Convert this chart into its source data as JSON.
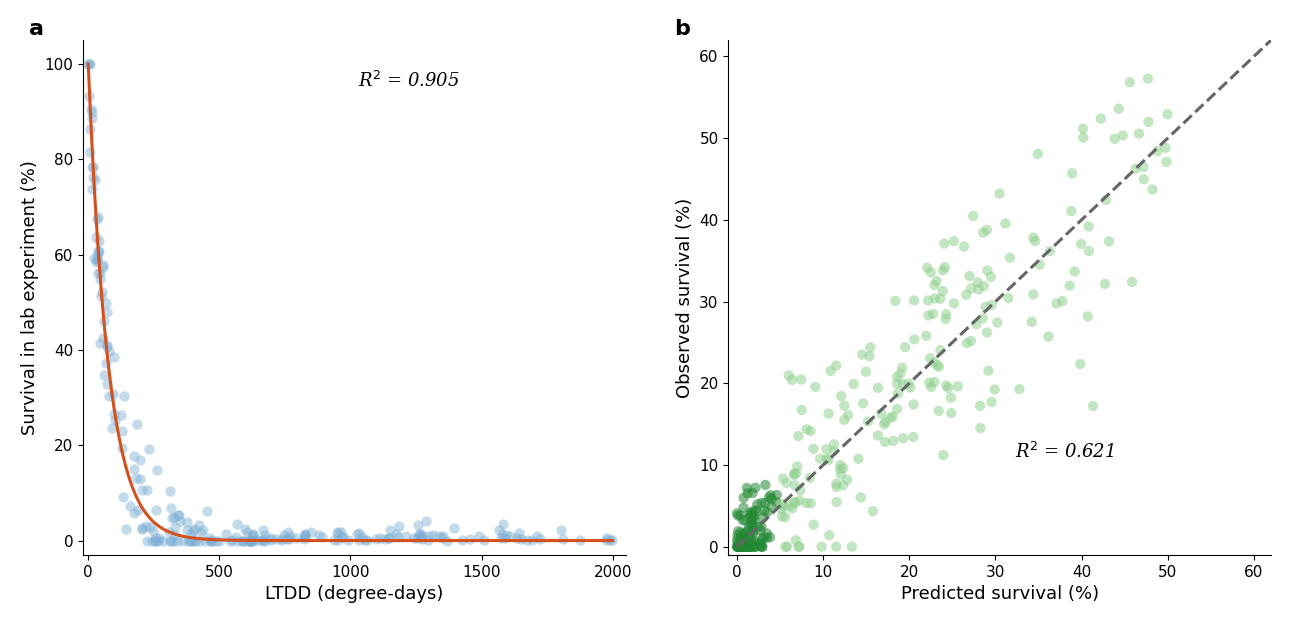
{
  "panel_a": {
    "label": "a",
    "xlabel": "LTDD (degree-days)",
    "ylabel": "Survival in lab experiment (%)",
    "r2_text": "R$^2$ = 0.905",
    "xlim": [
      -20,
      2050
    ],
    "ylim": [
      -3,
      105
    ],
    "xticks": [
      0,
      500,
      1000,
      1500,
      2000
    ],
    "yticks": [
      0,
      20,
      40,
      60,
      80,
      100
    ],
    "scatter_color": "#7aadd4",
    "scatter_alpha": 0.45,
    "scatter_size": 55,
    "curve_color": "#d4511e",
    "curve_lw": 2.2,
    "decay_rate": 0.013
  },
  "panel_b": {
    "label": "b",
    "xlabel": "Predicted survival (%)",
    "ylabel": "Observed survival (%)",
    "r2_text": "R$^2$ = 0.621",
    "xlim": [
      -1,
      62
    ],
    "ylim": [
      -1,
      62
    ],
    "xticks": [
      0,
      10,
      20,
      30,
      40,
      50,
      60
    ],
    "yticks": [
      0,
      10,
      20,
      30,
      40,
      50,
      60
    ],
    "scatter_color_light": "#90d090",
    "scatter_color_dark": "#228833",
    "scatter_alpha": 0.55,
    "scatter_size": 55,
    "line_color": "#666666",
    "line_lw": 2.2
  },
  "fig_bg": "#ffffff",
  "font_size_label": 13,
  "font_size_tick": 11,
  "font_size_panel": 16,
  "font_size_r2": 13
}
